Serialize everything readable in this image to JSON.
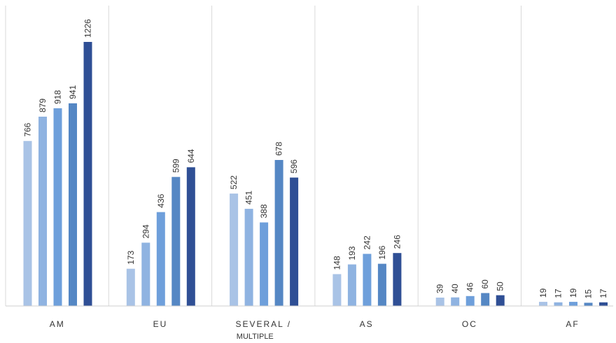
{
  "chart_data": {
    "type": "bar",
    "categories": [
      {
        "label": "AM",
        "sublabel": ""
      },
      {
        "label": "EU",
        "sublabel": ""
      },
      {
        "label": "SEVERAL /",
        "sublabel": "MULTIPLE"
      },
      {
        "label": "AS",
        "sublabel": ""
      },
      {
        "label": "OC",
        "sublabel": ""
      },
      {
        "label": "AF",
        "sublabel": ""
      }
    ],
    "series": [
      {
        "color": "#a9c3e6",
        "values": [
          766,
          173,
          522,
          148,
          39,
          19
        ]
      },
      {
        "color": "#8fb3e1",
        "values": [
          879,
          294,
          451,
          193,
          40,
          17
        ]
      },
      {
        "color": "#6e9fdb",
        "values": [
          918,
          436,
          388,
          242,
          46,
          19
        ]
      },
      {
        "color": "#5587c4",
        "values": [
          941,
          599,
          678,
          196,
          60,
          15
        ]
      },
      {
        "color": "#2f4f95",
        "values": [
          1226,
          644,
          596,
          246,
          50,
          17
        ]
      }
    ],
    "ylim": [
      0,
      1226
    ],
    "grid": "vertical-category-separators",
    "legend": "none"
  }
}
